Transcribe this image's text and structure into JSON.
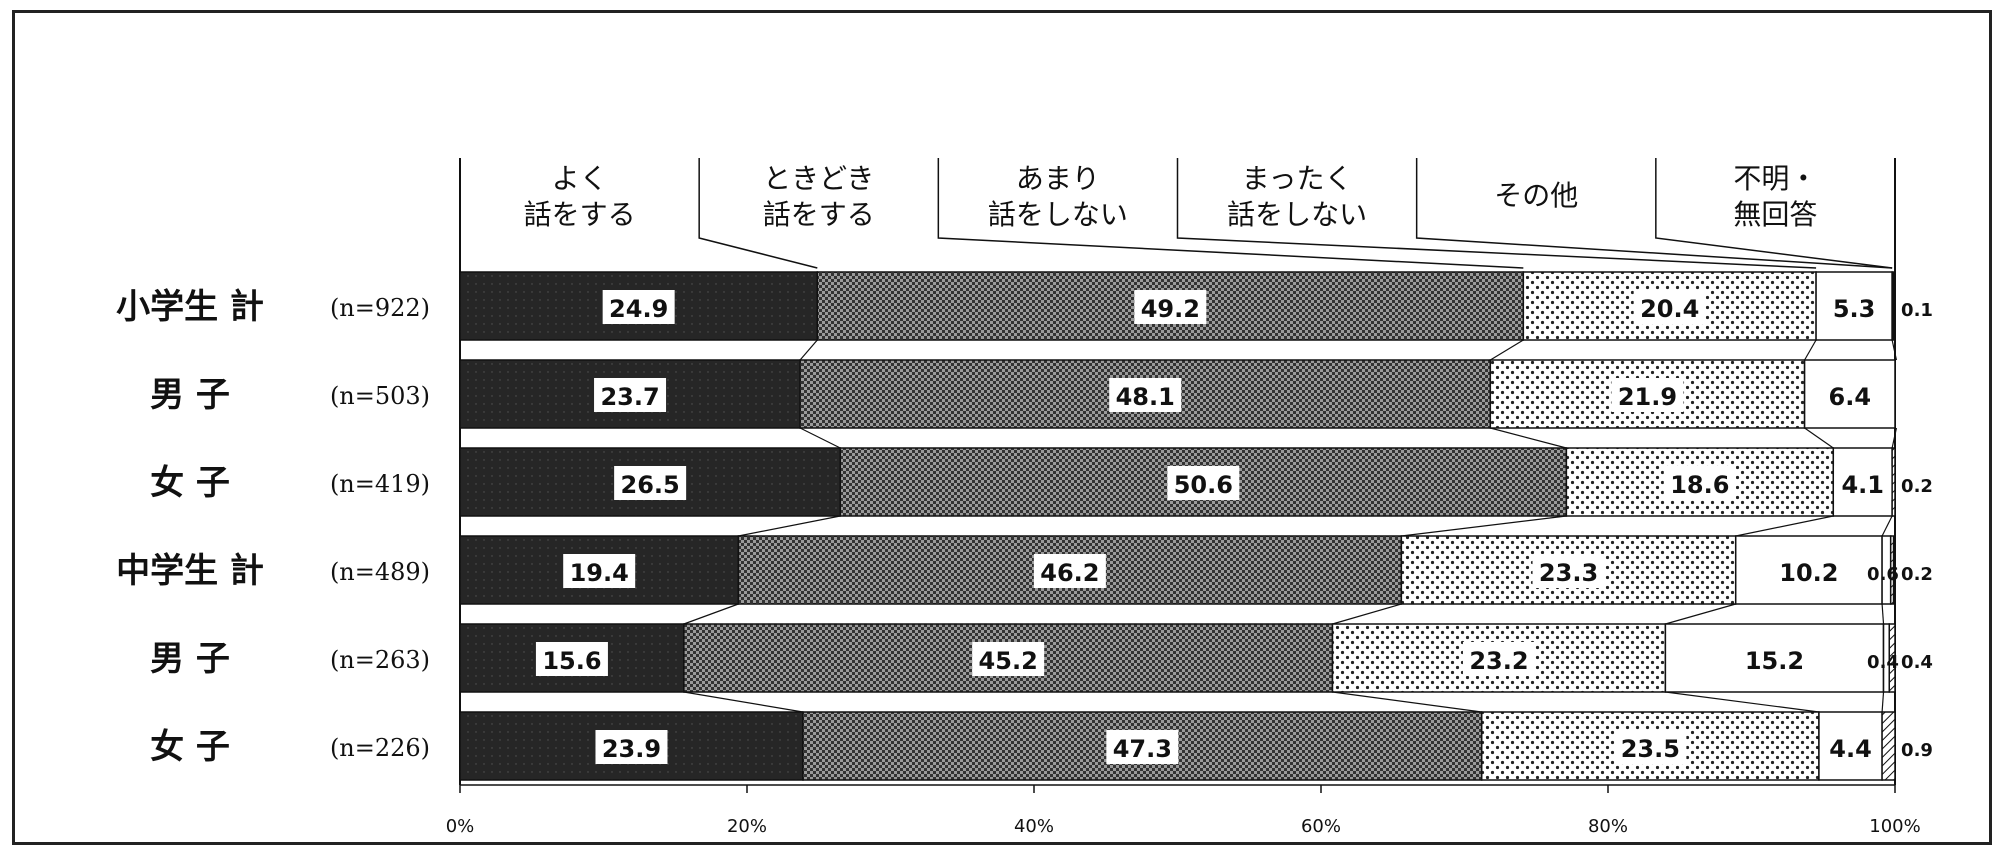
{
  "chart_data": {
    "type": "bar",
    "stacked": true,
    "orientation": "horizontal",
    "series": [
      {
        "name": "よく\n話をする",
        "color": "#2a2a2a"
      },
      {
        "name": "ときどき\n話をする",
        "color": "#7a7a7a"
      },
      {
        "name": "あまり\n話をしない",
        "color": "#f2f2f2"
      },
      {
        "name": "まったく\n話をしない",
        "color": "#ffffff"
      },
      {
        "name": "その他",
        "color": "#ffffff"
      },
      {
        "name": "不明・\n無回答",
        "color": "#ffffff"
      }
    ],
    "rows": [
      {
        "label": "小学生 計",
        "n": "(n=922)",
        "values": [
          24.9,
          49.2,
          20.4,
          5.3,
          0,
          0.1
        ],
        "labels": [
          "24.9",
          "49.2",
          "20.4",
          "5.3",
          "",
          "0.1"
        ]
      },
      {
        "label": "男 子",
        "n": "(n=503)",
        "values": [
          23.7,
          48.1,
          21.9,
          6.4,
          0,
          0
        ],
        "labels": [
          "23.7",
          "48.1",
          "21.9",
          "6.4",
          "",
          ""
        ]
      },
      {
        "label": "女 子",
        "n": "(n=419)",
        "values": [
          26.5,
          50.6,
          18.6,
          4.1,
          0,
          0.2
        ],
        "labels": [
          "26.5",
          "50.6",
          "18.6",
          "4.1",
          "",
          "0.2"
        ]
      },
      {
        "label": "中学生 計",
        "n": "(n=489)",
        "values": [
          19.4,
          46.2,
          23.3,
          10.2,
          0.6,
          0.2
        ],
        "labels": [
          "19.4",
          "46.2",
          "23.3",
          "10.2",
          "0.6",
          "0.2"
        ]
      },
      {
        "label": "男 子",
        "n": "(n=263)",
        "values": [
          15.6,
          45.2,
          23.2,
          15.2,
          0.4,
          0.4
        ],
        "labels": [
          "15.6",
          "45.2",
          "23.2",
          "15.2",
          "0.4",
          "0.4"
        ]
      },
      {
        "label": "女 子",
        "n": "(n=226)",
        "values": [
          23.9,
          47.3,
          23.5,
          4.4,
          0,
          0.9
        ],
        "labels": [
          "23.9",
          "47.3",
          "23.5",
          "4.4",
          "",
          "0.9"
        ]
      }
    ],
    "x_ticks": [
      "0%",
      "20%",
      "40%",
      "60%",
      "80%",
      "100%"
    ],
    "xlim": [
      0,
      100
    ],
    "grid": false,
    "legend_placement": "top"
  }
}
